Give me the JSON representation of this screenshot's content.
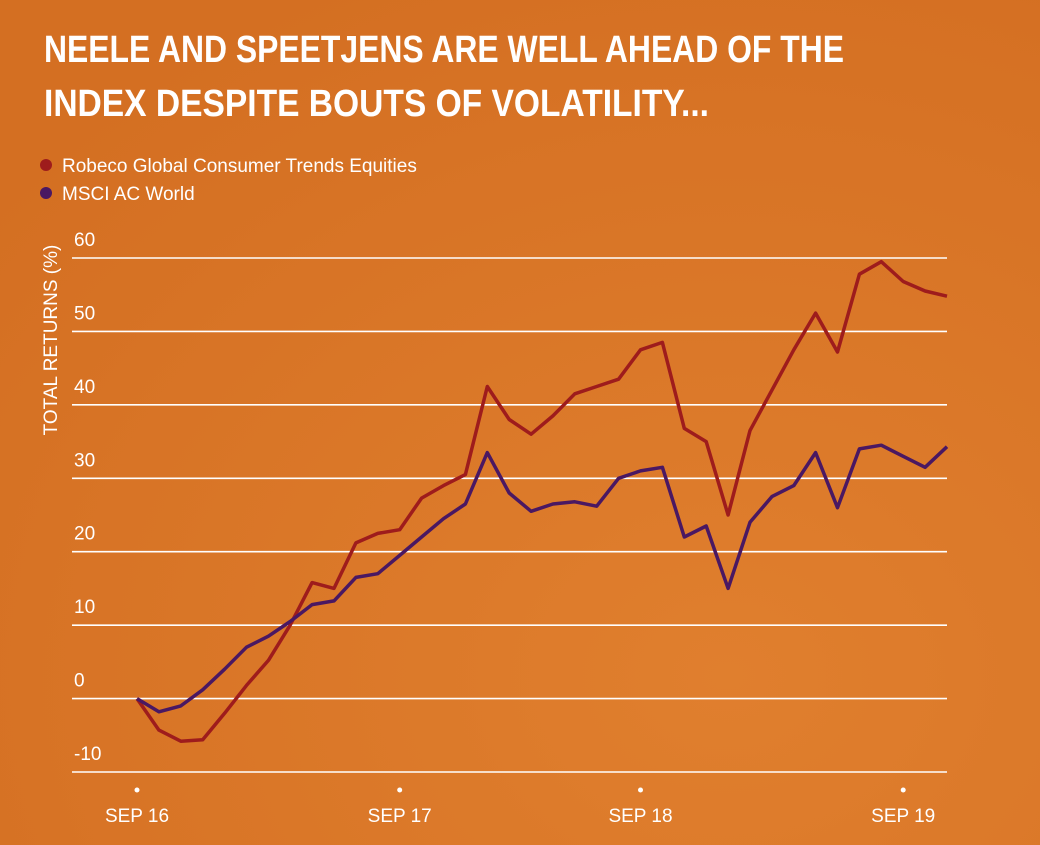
{
  "chart_data": {
    "type": "line",
    "title": [
      "NEELE AND SPEETJENS ARE WELL AHEAD OF THE",
      "INDEX DESPITE BOUTS OF VOLATILITY..."
    ],
    "y_label": "TOTAL RETURNS (%)",
    "categories": [
      "SEP 16",
      null,
      null,
      null,
      null,
      null,
      null,
      null,
      null,
      null,
      null,
      null,
      "SEP 17",
      null,
      null,
      null,
      null,
      null,
      null,
      null,
      null,
      null,
      null,
      "SEP 18",
      null,
      null,
      null,
      null,
      null,
      null,
      null,
      null,
      null,
      null,
      null,
      "SEP 19",
      null,
      null
    ],
    "series": [
      {
        "name": "Robeco Global Consumer Trends Equities",
        "color": "#9e1c1c",
        "values": [
          0,
          -4.3,
          -5.8,
          -5.6,
          -2,
          1.8,
          5.2,
          10,
          15.8,
          15,
          21.2,
          22.5,
          23,
          27.3,
          29,
          30.5,
          42.5,
          38,
          36,
          38.5,
          41.5,
          42.5,
          43.5,
          47.5,
          48.5,
          36.8,
          35,
          25,
          36.5,
          42,
          47.5,
          52.5,
          47.2,
          57.8,
          59.5,
          56.8,
          55.5,
          54.8
        ]
      },
      {
        "name": "MSCI AC World",
        "color": "#4a1862",
        "values": [
          0,
          -1.8,
          -1,
          1.2,
          4,
          7,
          8.5,
          10.5,
          12.8,
          13.3,
          16.5,
          17,
          19.5,
          22,
          24.5,
          26.5,
          33.5,
          28,
          25.5,
          26.5,
          26.8,
          26.2,
          30,
          31,
          31.5,
          22,
          23.5,
          15,
          24,
          27.5,
          29,
          33.5,
          26,
          34,
          34.5,
          33,
          31.5,
          34.3
        ]
      }
    ],
    "ylim": [
      -10,
      60
    ],
    "yticks": [
      -10,
      0,
      10,
      20,
      30,
      40,
      50,
      60
    ],
    "grid": true
  }
}
